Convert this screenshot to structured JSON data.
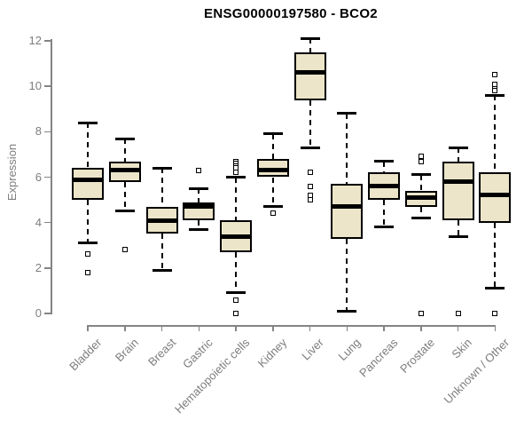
{
  "header": {
    "title": "ENSG00000197580 - BCO2"
  },
  "colors": {
    "background": "#ffffff",
    "box_fill": "#ECE5C9",
    "box_border": "#000000",
    "median": "#000000",
    "whisker": "#000000",
    "outlier": "#000000",
    "axis": "#848484",
    "tick_label": "#7d7d7d",
    "title": "#000000"
  },
  "chart_data": {
    "type": "boxplot",
    "title": "ENSG00000197580 - BCO2",
    "xlabel": "",
    "ylabel": "Expression",
    "ylim": [
      0,
      12
    ],
    "yticks": [
      0,
      2,
      4,
      6,
      8,
      10,
      12
    ],
    "grid": false,
    "legend": false,
    "x_label_rotation_deg": 45,
    "categories": [
      "Bladder",
      "Brain",
      "Breast",
      "Gastric",
      "Hematopoietic cells",
      "Kidney",
      "Liver",
      "Lung",
      "Pancreas",
      "Prostate",
      "Skin",
      "Unknown / Other"
    ],
    "series": [
      {
        "category": "Bladder",
        "whisker_low": 3.1,
        "q1": 5.0,
        "median": 5.9,
        "q3": 6.4,
        "whisker_high": 8.4,
        "outliers": [
          2.6,
          1.8
        ]
      },
      {
        "category": "Brain",
        "whisker_low": 4.5,
        "q1": 5.8,
        "median": 6.3,
        "q3": 6.7,
        "whisker_high": 7.7,
        "outliers": [
          2.8
        ]
      },
      {
        "category": "Breast",
        "whisker_low": 1.9,
        "q1": 3.5,
        "median": 4.1,
        "q3": 4.7,
        "whisker_high": 6.4,
        "outliers": []
      },
      {
        "category": "Gastric",
        "whisker_low": 3.7,
        "q1": 4.1,
        "median": 4.7,
        "q3": 4.9,
        "whisker_high": 5.5,
        "outliers": [
          6.3
        ]
      },
      {
        "category": "Hematopoietic cells",
        "whisker_low": 0.9,
        "q1": 2.7,
        "median": 3.4,
        "q3": 4.1,
        "whisker_high": 6.0,
        "outliers": [
          6.7,
          6.6,
          6.5,
          6.4,
          6.2,
          0.6,
          0.0
        ]
      },
      {
        "category": "Kidney",
        "whisker_low": 4.7,
        "q1": 6.0,
        "median": 6.3,
        "q3": 6.8,
        "whisker_high": 7.9,
        "outliers": [
          4.4
        ]
      },
      {
        "category": "Liver",
        "whisker_low": 7.3,
        "q1": 9.4,
        "median": 10.6,
        "q3": 11.5,
        "whisker_high": 12.1,
        "outliers": [
          6.2,
          5.6,
          5.2,
          5.0
        ]
      },
      {
        "category": "Lung",
        "whisker_low": 0.1,
        "q1": 3.3,
        "median": 4.7,
        "q3": 5.7,
        "whisker_high": 8.8,
        "outliers": []
      },
      {
        "category": "Pancreas",
        "whisker_low": 3.8,
        "q1": 5.0,
        "median": 5.6,
        "q3": 6.2,
        "whisker_high": 6.7,
        "outliers": []
      },
      {
        "category": "Prostate",
        "whisker_low": 4.2,
        "q1": 4.7,
        "median": 5.1,
        "q3": 5.4,
        "whisker_high": 6.1,
        "outliers": [
          6.9,
          6.7,
          0.0
        ]
      },
      {
        "category": "Skin",
        "whisker_low": 3.4,
        "q1": 4.1,
        "median": 5.8,
        "q3": 6.7,
        "whisker_high": 7.3,
        "outliers": [
          0.0
        ]
      },
      {
        "category": "Unknown / Other",
        "whisker_low": 1.1,
        "q1": 4.0,
        "median": 5.2,
        "q3": 6.2,
        "whisker_high": 9.6,
        "outliers": [
          10.5,
          10.1,
          9.9,
          9.8,
          0.0
        ]
      }
    ]
  }
}
